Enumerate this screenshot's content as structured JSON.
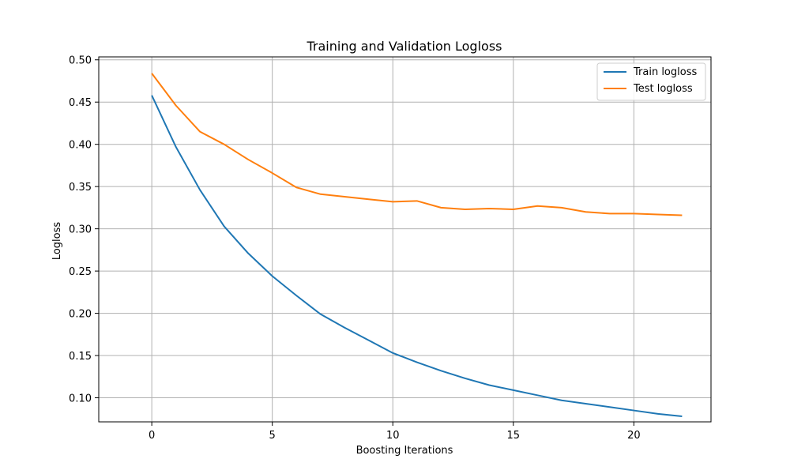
{
  "chart_data": {
    "type": "line",
    "title": "Training and Validation Logloss",
    "xlabel": "Boosting Iterations",
    "ylabel": "Logloss",
    "xlim": [
      -2.2,
      23.2
    ],
    "ylim": [
      0.0715,
      0.5035
    ],
    "xticks": [
      0,
      5,
      10,
      15,
      20
    ],
    "yticks": [
      0.1,
      0.15,
      0.2,
      0.25,
      0.3,
      0.35,
      0.4,
      0.45,
      0.5
    ],
    "ytick_labels": [
      "0.10",
      "0.15",
      "0.20",
      "0.25",
      "0.30",
      "0.35",
      "0.40",
      "0.45",
      "0.50"
    ],
    "grid": true,
    "legend_position": "top-right",
    "x": [
      0,
      1,
      2,
      3,
      4,
      5,
      6,
      7,
      8,
      9,
      10,
      11,
      12,
      13,
      14,
      15,
      16,
      17,
      18,
      19,
      20,
      21,
      22
    ],
    "series": [
      {
        "name": "Train logloss",
        "color": "#1f77b4",
        "values": [
          0.458,
          0.397,
          0.346,
          0.303,
          0.271,
          0.244,
          0.221,
          0.199,
          0.183,
          0.168,
          0.153,
          0.142,
          0.132,
          0.123,
          0.115,
          0.109,
          0.103,
          0.097,
          0.093,
          0.089,
          0.085,
          0.081,
          0.078
        ]
      },
      {
        "name": "Test logloss",
        "color": "#ff7f0e",
        "values": [
          0.484,
          0.446,
          0.415,
          0.4,
          0.382,
          0.366,
          0.349,
          0.341,
          0.338,
          0.335,
          0.332,
          0.333,
          0.325,
          0.323,
          0.324,
          0.323,
          0.327,
          0.325,
          0.32,
          0.318,
          0.318,
          0.317,
          0.316
        ]
      }
    ]
  }
}
